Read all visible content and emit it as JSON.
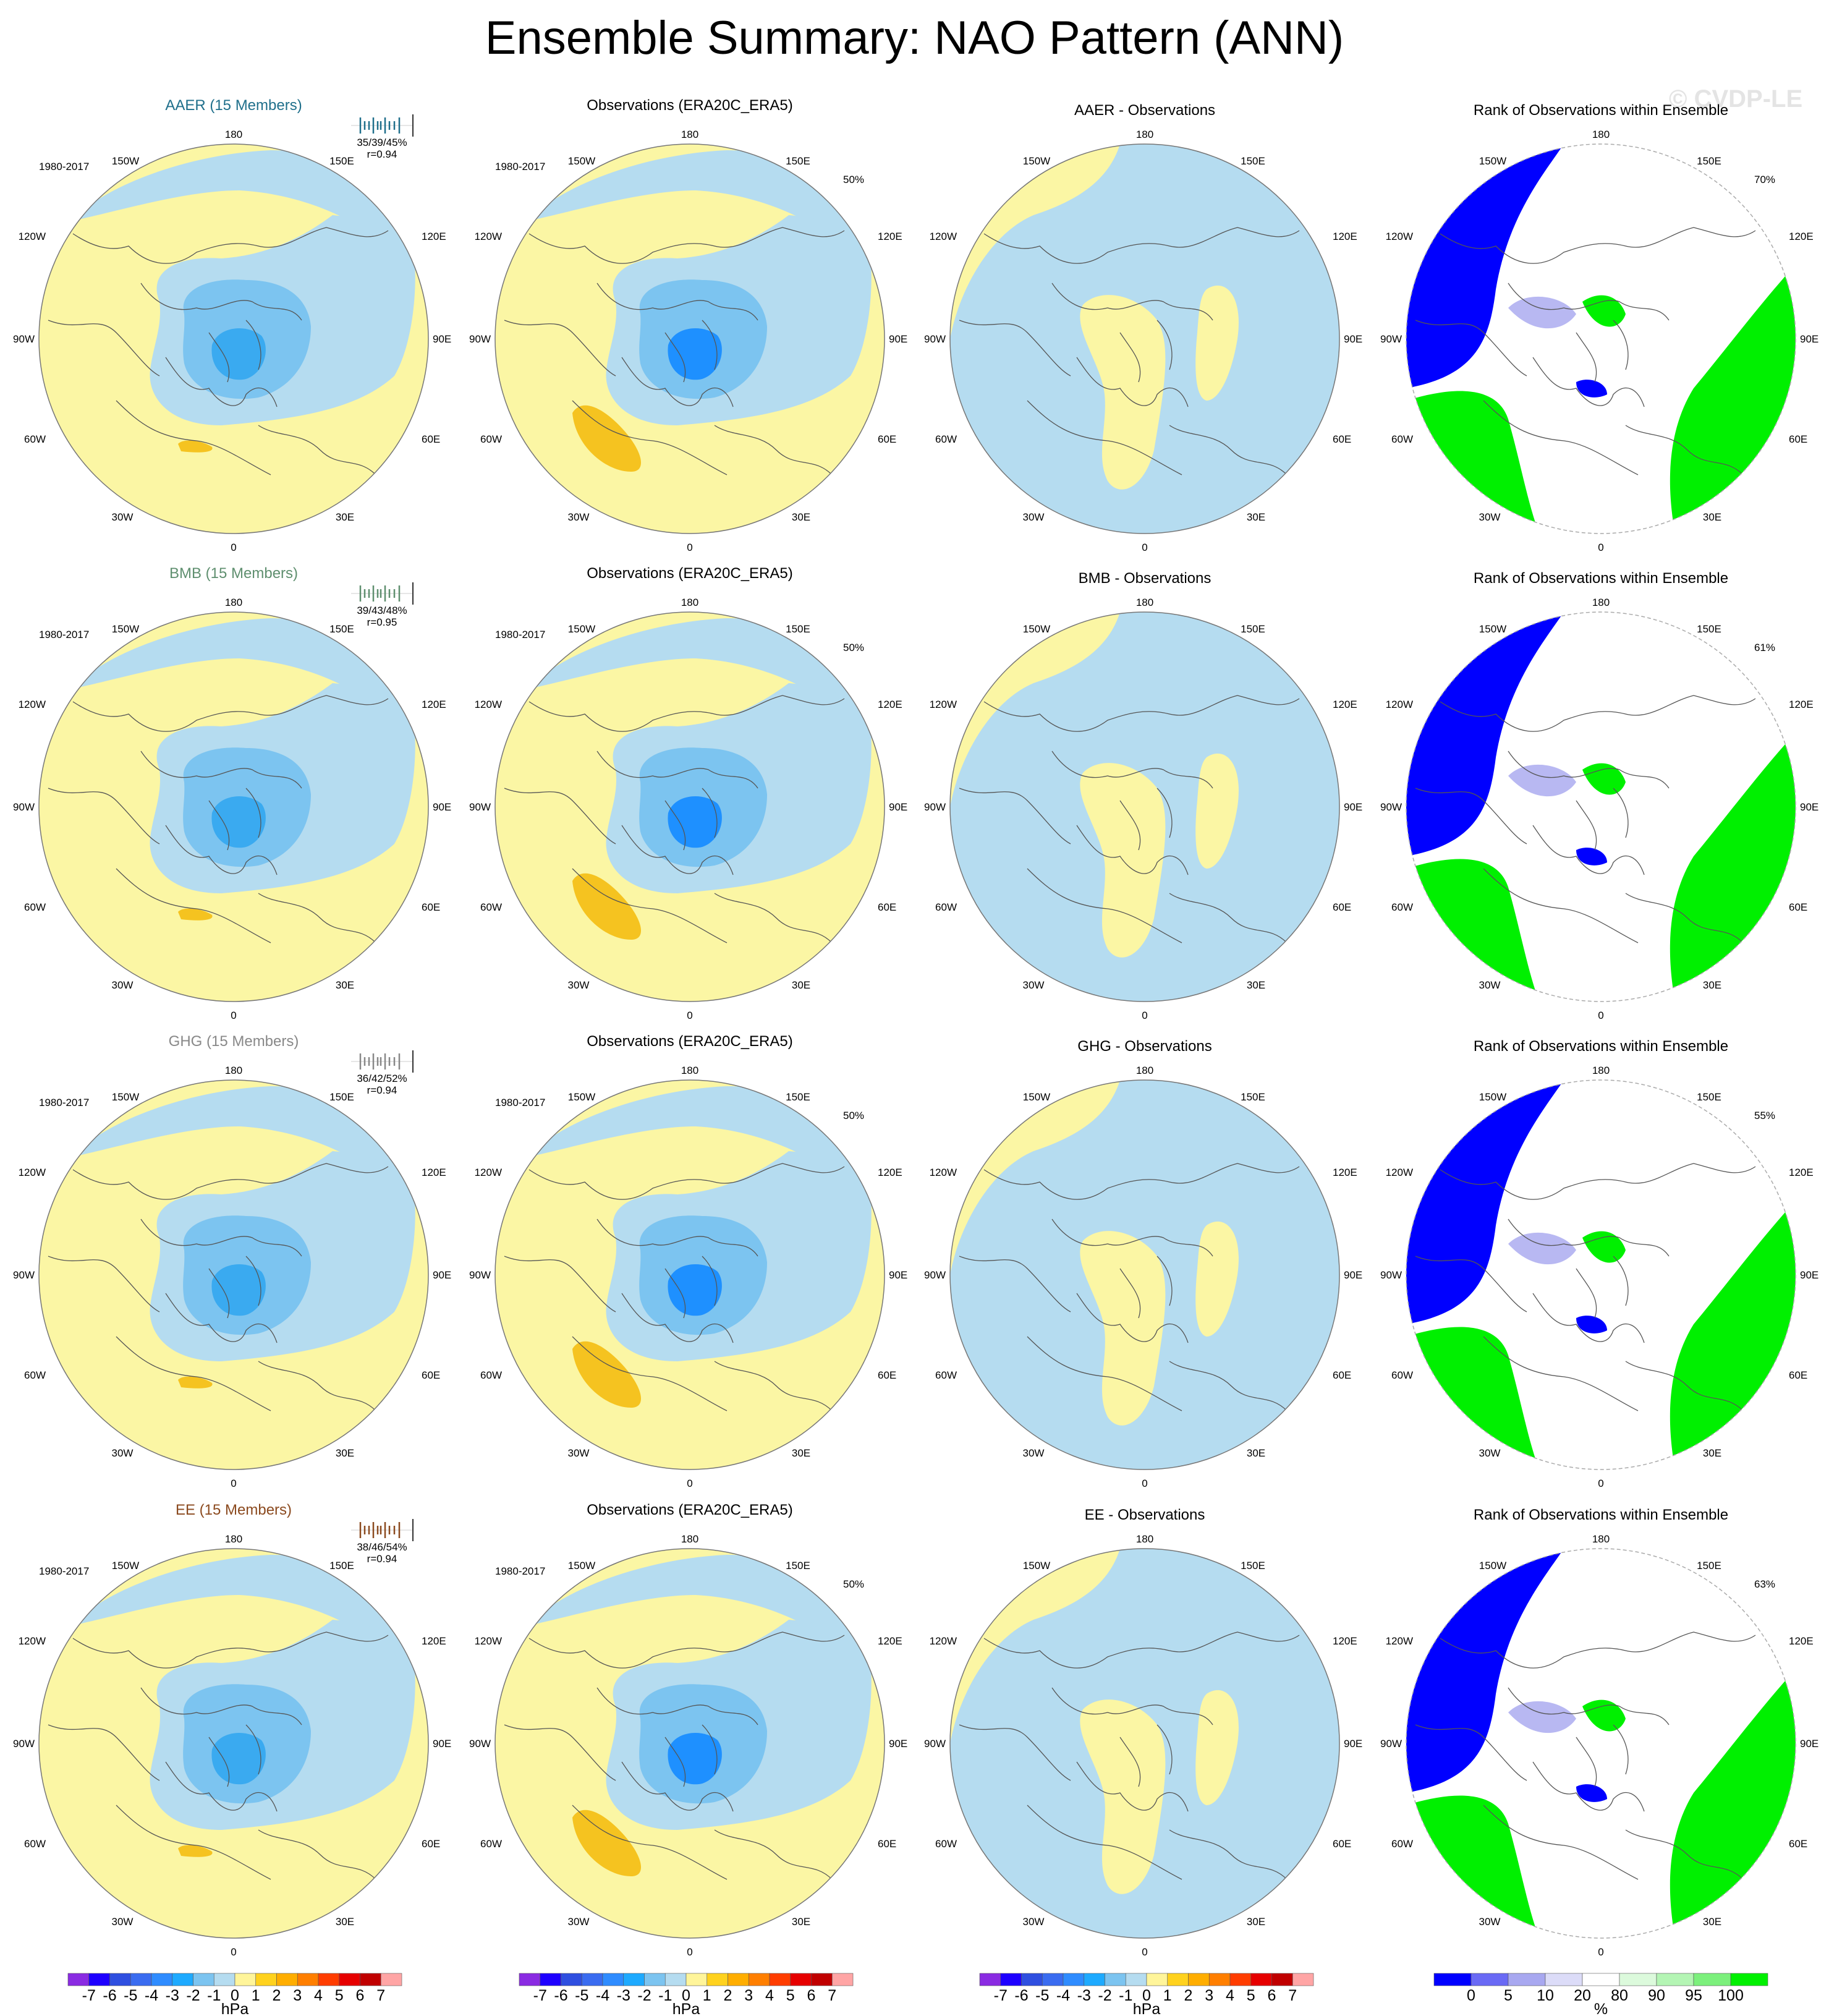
{
  "title": "Ensemble Summary: NAO Pattern (ANN)",
  "watermark": "© CVDP-LE",
  "lon_labels": {
    "top": "180",
    "bottom": "0",
    "upper_left": "150W",
    "upper_right": "150E",
    "mid_upper_left": "120W",
    "mid_upper_right": "120E",
    "left": "90W",
    "right": "90E",
    "mid_lower_left": "60W",
    "mid_lower_right": "60E",
    "lower_left": "30W",
    "lower_right": "30E"
  },
  "rows": [
    {
      "ensemble": {
        "title": "AER (15 Members)",
        "title_display": "AAER (15 Members)",
        "period": "1980-2017",
        "stats": "35/39/45%",
        "r": "r=0.94",
        "color": "#1f6f8b"
      },
      "obs": {
        "title": "Observations (ERA20C_ERA5)",
        "period": "1980-2017",
        "pct": "50%"
      },
      "diff": {
        "title": "AAER - Observations"
      },
      "rank": {
        "title": "Rank of Observations within Ensemble",
        "pct": "70%"
      }
    },
    {
      "ensemble": {
        "title": "BMB (15 Members)",
        "title_display": "BMB (15 Members)",
        "period": "1980-2017",
        "stats": "39/43/48%",
        "r": "r=0.95",
        "color": "#5f8f6f"
      },
      "obs": {
        "title": "Observations (ERA20C_ERA5)",
        "period": "1980-2017",
        "pct": "50%"
      },
      "diff": {
        "title": "BMB - Observations"
      },
      "rank": {
        "title": "Rank of Observations within Ensemble",
        "pct": "61%"
      }
    },
    {
      "ensemble": {
        "title": "GHG (15 Members)",
        "title_display": "GHG (15 Members)",
        "period": "1980-2017",
        "stats": "36/42/52%",
        "r": "r=0.94",
        "color": "#888888"
      },
      "obs": {
        "title": "Observations (ERA20C_ERA5)",
        "period": "1980-2017",
        "pct": "50%"
      },
      "diff": {
        "title": "GHG - Observations"
      },
      "rank": {
        "title": "Rank of Observations within Ensemble",
        "pct": "55%"
      }
    },
    {
      "ensemble": {
        "title": "EE (15 Members)",
        "title_display": "EE (15 Members)",
        "period": "1980-2017",
        "stats": "38/46/54%",
        "r": "r=0.94",
        "color": "#8b4a1f"
      },
      "obs": {
        "title": "Observations (ERA20C_ERA5)",
        "period": "1980-2017",
        "pct": "50%"
      },
      "diff": {
        "title": "EE - Observations"
      },
      "rank": {
        "title": "Rank of Observations within Ensemble",
        "pct": "63%"
      }
    }
  ],
  "colorbar_hpa": {
    "labels": [
      "-7",
      "-6",
      "-5",
      "-4",
      "-3",
      "-2",
      "-1",
      "0",
      "1",
      "2",
      "3",
      "4",
      "5",
      "6",
      "7"
    ],
    "unit": "hPa",
    "colors": [
      "#8a2be2",
      "#1e00ff",
      "#2f4fe0",
      "#3a6cf0",
      "#2f8cff",
      "#1eaaff",
      "#7cc4f0",
      "#b5dcf0",
      "#fff59a",
      "#ffd21e",
      "#ffae00",
      "#ff7f00",
      "#ff3d00",
      "#e60000",
      "#c00000",
      "#ffa5a5"
    ]
  },
  "colorbar_rank": {
    "labels": [
      "0",
      "5",
      "10",
      "20",
      "80",
      "90",
      "95",
      "100"
    ],
    "unit": "%",
    "colors": [
      "#0000ff",
      "#6a6af5",
      "#a8a8f0",
      "#dcdcf8",
      "#ffffff",
      "#dcfadc",
      "#b4f5b4",
      "#7cf07c",
      "#00f000"
    ]
  },
  "palette": {
    "yellow": "#fbf6a4",
    "lightblue": "#b5dcf0",
    "midblue": "#7cc4f0",
    "blue": "#3aaaf0",
    "deepblue": "#1e90ff",
    "orange": "#f5c320",
    "rank_blue": "#0000ff",
    "rank_lavender": "#b8b8f2",
    "rank_green": "#00f000",
    "rank_lightgreen": "#ccf8cc"
  }
}
